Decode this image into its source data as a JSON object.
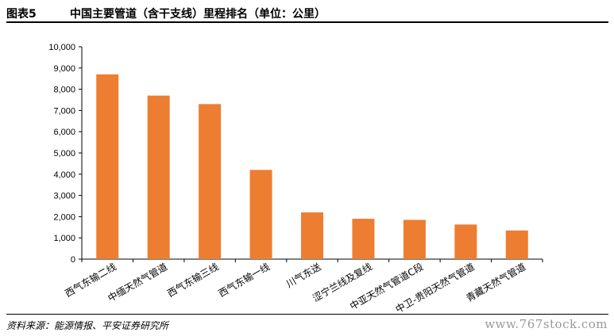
{
  "header": {
    "figure_label": "图表5",
    "title": "中国主要管道（含干支线）里程排名（单位：公里）"
  },
  "footer": {
    "source": "资料来源：能源情报、平安证券研究所",
    "watermark": "www.767stock.com"
  },
  "colors": {
    "bar": "#ED7D31",
    "axis": "#000000"
  },
  "chart_data": {
    "type": "bar",
    "title": "",
    "xlabel": "",
    "ylabel": "",
    "ylim": [
      0,
      10000
    ],
    "yticks": [
      0,
      1000,
      2000,
      3000,
      4000,
      5000,
      6000,
      7000,
      8000,
      9000,
      10000
    ],
    "ytick_labels": [
      "0",
      "1,000",
      "2,000",
      "3,000",
      "4,000",
      "5,000",
      "6,000",
      "7,000",
      "8,000",
      "9,000",
      "10,000"
    ],
    "grid": false,
    "legend": "none",
    "categories": [
      "西气东输二线",
      "中缅天然气管道",
      "西气东输三线",
      "西气东输一线",
      "川气东送",
      "涩宁兰线及复线",
      "中亚天然气管道C段",
      "中卫-贵阳天然气管道",
      "青藏天然气管道"
    ],
    "values": [
      8700,
      7700,
      7300,
      4200,
      2200,
      1900,
      1850,
      1630,
      1350
    ]
  }
}
